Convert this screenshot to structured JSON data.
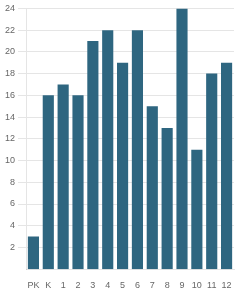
{
  "chart_data": {
    "type": "bar",
    "categories": [
      "PK",
      "K",
      "1",
      "2",
      "3",
      "4",
      "5",
      "6",
      "7",
      "8",
      "9",
      "10",
      "11",
      "12"
    ],
    "values": [
      3,
      16,
      17,
      16,
      21,
      22,
      19,
      22,
      15,
      13,
      24,
      11,
      18,
      19
    ],
    "color": "#2e6680",
    "ylim": [
      0,
      24
    ],
    "yticks": [
      2,
      4,
      6,
      8,
      10,
      12,
      14,
      16,
      18,
      20,
      22,
      24
    ],
    "grid": true
  }
}
